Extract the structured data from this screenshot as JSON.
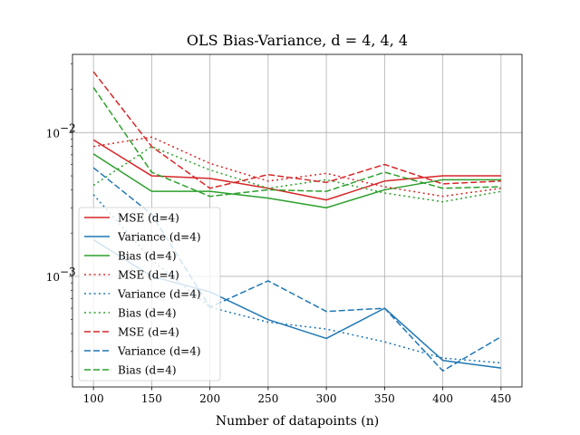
{
  "chart_data": {
    "type": "line",
    "title": "OLS Bias-Variance, d = 4, 4, 4",
    "xlabel": "Number of datapoints (n)",
    "ylabel": "",
    "x": [
      100,
      150,
      200,
      250,
      300,
      350,
      400,
      450
    ],
    "xlim": [
      82,
      468
    ],
    "ylim": [
      0.00017,
      0.035
    ],
    "yscale": "log",
    "x_ticks": [
      "100",
      "150",
      "200",
      "250",
      "300",
      "350",
      "400",
      "450"
    ],
    "y_ticks": [
      {
        "value": 0.001,
        "label": "10",
        "exp": "−3"
      },
      {
        "value": 0.01,
        "label": "10",
        "exp": "−2"
      }
    ],
    "grid": true,
    "legend_position": "lower-left",
    "colors": {
      "mse": "#d62728",
      "variance": "#1f77b4",
      "bias": "#2ca02c"
    },
    "series": [
      {
        "name": "MSE (d=4)",
        "color": "#d62728",
        "style": "solid",
        "values": [
          0.0089,
          0.005,
          0.0048,
          0.0041,
          0.0034,
          0.0046,
          0.005,
          0.005
        ]
      },
      {
        "name": "Variance (d=4)",
        "color": "#1f77b4",
        "style": "solid",
        "values": [
          0.0018,
          0.001,
          0.00078,
          0.0005,
          0.00037,
          0.0006,
          0.00026,
          0.00023
        ]
      },
      {
        "name": "Bias (d=4)",
        "color": "#2ca02c",
        "style": "solid",
        "values": [
          0.0071,
          0.0039,
          0.0039,
          0.0035,
          0.003,
          0.004,
          0.0047,
          0.0047
        ]
      },
      {
        "name": "MSE (d=4)",
        "color": "#d62728",
        "style": "dotted",
        "values": [
          0.008,
          0.0093,
          0.0061,
          0.0046,
          0.0052,
          0.0042,
          0.0036,
          0.0041
        ]
      },
      {
        "name": "Variance (d=4)",
        "color": "#1f77b4",
        "style": "dotted",
        "values": [
          0.0037,
          0.0013,
          0.00061,
          0.00048,
          0.00043,
          0.00035,
          0.00027,
          0.00025
        ]
      },
      {
        "name": "Bias (d=4)",
        "color": "#2ca02c",
        "style": "dotted",
        "values": [
          0.0043,
          0.008,
          0.0055,
          0.0041,
          0.0047,
          0.0038,
          0.0033,
          0.0039
        ]
      },
      {
        "name": "MSE (d=4)",
        "color": "#d62728",
        "style": "dashed",
        "values": [
          0.0265,
          0.008,
          0.0041,
          0.0051,
          0.0045,
          0.006,
          0.0044,
          0.0046
        ]
      },
      {
        "name": "Variance (d=4)",
        "color": "#1f77b4",
        "style": "dashed",
        "values": [
          0.0057,
          0.0027,
          0.00061,
          0.00093,
          0.00057,
          0.0006,
          0.00022,
          0.00038
        ]
      },
      {
        "name": "Bias (d=4)",
        "color": "#2ca02c",
        "style": "dashed",
        "values": [
          0.0206,
          0.0053,
          0.0036,
          0.004,
          0.0039,
          0.0053,
          0.0041,
          0.0042
        ]
      }
    ]
  }
}
